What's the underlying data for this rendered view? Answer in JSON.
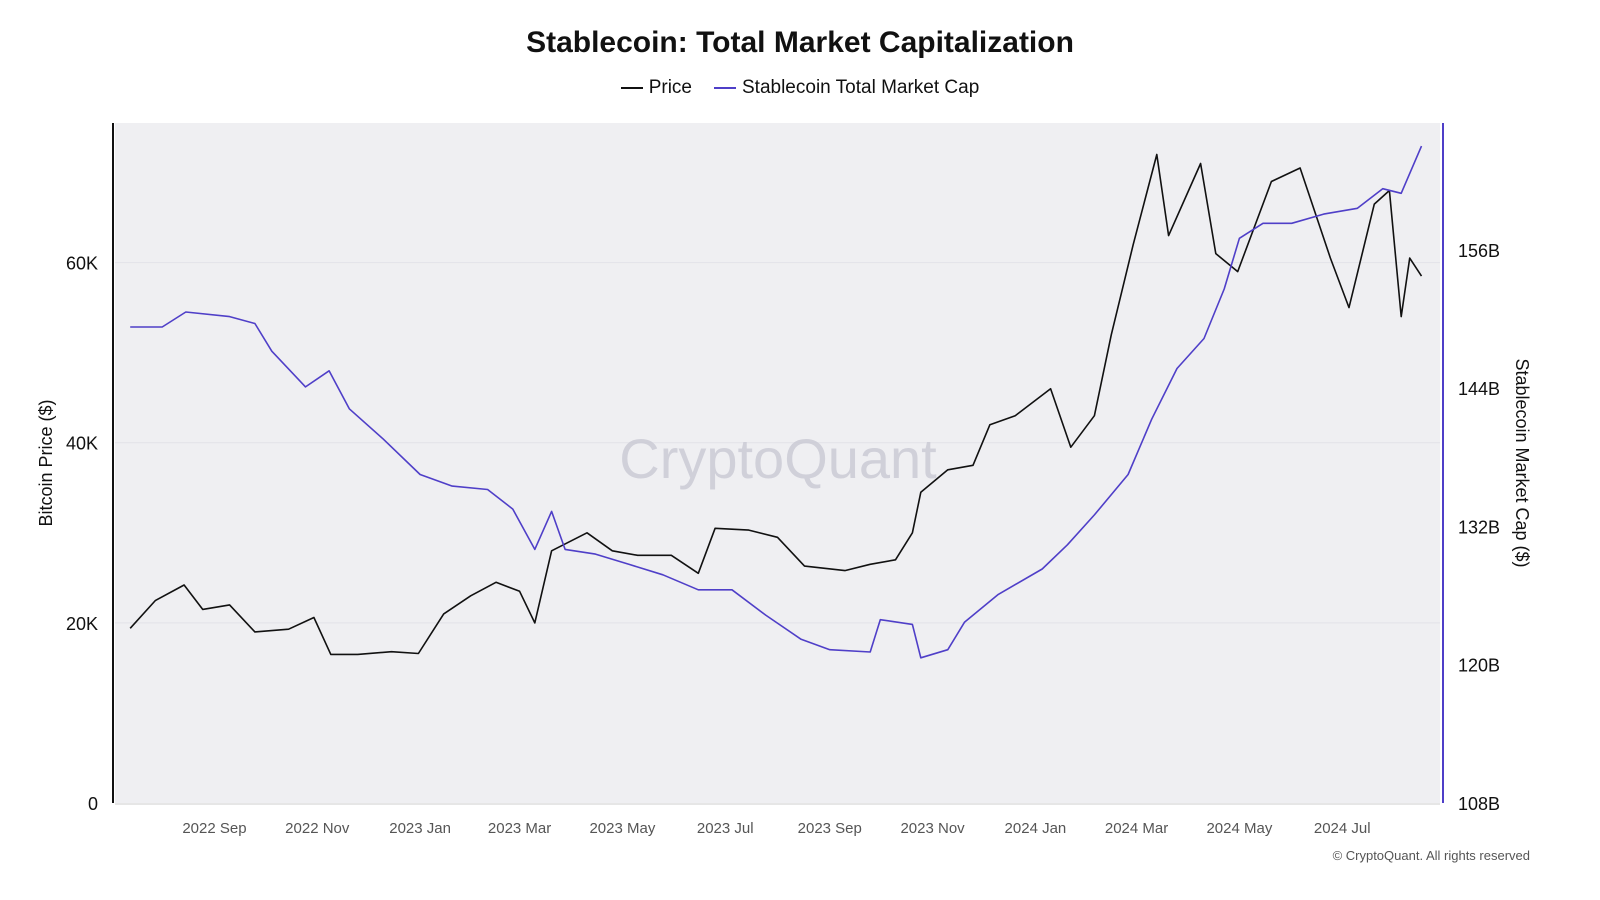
{
  "chart_data": {
    "type": "line",
    "title": "Stablecoin: Total Market Capitalization",
    "legend_position": "top",
    "grid": true,
    "x_range": [
      "2022-07-04",
      "2024-08-28"
    ],
    "x_ticks": [
      {
        "date": "2022-09-01",
        "label": "2022 Sep"
      },
      {
        "date": "2022-11-01",
        "label": "2022 Nov"
      },
      {
        "date": "2023-01-01",
        "label": "2023 Jan"
      },
      {
        "date": "2023-03-01",
        "label": "2023 Mar"
      },
      {
        "date": "2023-05-01",
        "label": "2023 May"
      },
      {
        "date": "2023-07-01",
        "label": "2023 Jul"
      },
      {
        "date": "2023-09-01",
        "label": "2023 Sep"
      },
      {
        "date": "2023-11-01",
        "label": "2023 Nov"
      },
      {
        "date": "2024-01-01",
        "label": "2024 Jan"
      },
      {
        "date": "2024-03-01",
        "label": "2024 Mar"
      },
      {
        "date": "2024-05-01",
        "label": "2024 May"
      },
      {
        "date": "2024-07-01",
        "label": "2024 Jul"
      }
    ],
    "y_left": {
      "label": "Bitcoin Price ($)",
      "range": [
        0,
        75500
      ],
      "ticks": [
        {
          "v": 0,
          "label": "0"
        },
        {
          "v": 20000,
          "label": "20K"
        },
        {
          "v": 40000,
          "label": "40K"
        },
        {
          "v": 60000,
          "label": "60K"
        }
      ]
    },
    "y_right": {
      "label": "Stablecoin Market Cap ($)",
      "range": [
        108,
        167
      ],
      "unit": "B",
      "ticks": [
        {
          "v": 108,
          "label": "108B"
        },
        {
          "v": 120,
          "label": "120B"
        },
        {
          "v": 132,
          "label": "132B"
        },
        {
          "v": 144,
          "label": "144B"
        },
        {
          "v": 156,
          "label": "156B"
        }
      ]
    },
    "series": [
      {
        "name": "Price",
        "axis": "left",
        "color": "#111111",
        "points": [
          [
            "2022-07-13",
            19400
          ],
          [
            "2022-07-28",
            22500
          ],
          [
            "2022-08-14",
            24200
          ],
          [
            "2022-08-25",
            21500
          ],
          [
            "2022-09-10",
            22000
          ],
          [
            "2022-09-25",
            19000
          ],
          [
            "2022-10-15",
            19300
          ],
          [
            "2022-10-30",
            20600
          ],
          [
            "2022-11-09",
            16500
          ],
          [
            "2022-11-25",
            16500
          ],
          [
            "2022-12-15",
            16800
          ],
          [
            "2022-12-31",
            16600
          ],
          [
            "2023-01-15",
            21000
          ],
          [
            "2023-01-31",
            23000
          ],
          [
            "2023-02-15",
            24500
          ],
          [
            "2023-03-01",
            23500
          ],
          [
            "2023-03-10",
            20000
          ],
          [
            "2023-03-20",
            28000
          ],
          [
            "2023-04-10",
            30000
          ],
          [
            "2023-04-25",
            28000
          ],
          [
            "2023-05-10",
            27500
          ],
          [
            "2023-05-30",
            27500
          ],
          [
            "2023-06-15",
            25500
          ],
          [
            "2023-06-25",
            30500
          ],
          [
            "2023-07-15",
            30300
          ],
          [
            "2023-08-01",
            29500
          ],
          [
            "2023-08-17",
            26300
          ],
          [
            "2023-09-10",
            25800
          ],
          [
            "2023-09-25",
            26500
          ],
          [
            "2023-10-10",
            27000
          ],
          [
            "2023-10-20",
            30000
          ],
          [
            "2023-10-25",
            34500
          ],
          [
            "2023-11-10",
            37000
          ],
          [
            "2023-11-25",
            37500
          ],
          [
            "2023-12-05",
            42000
          ],
          [
            "2023-12-20",
            43000
          ],
          [
            "2024-01-10",
            46000
          ],
          [
            "2024-01-22",
            39500
          ],
          [
            "2024-02-05",
            43000
          ],
          [
            "2024-02-15",
            52000
          ],
          [
            "2024-02-28",
            62000
          ],
          [
            "2024-03-13",
            72000
          ],
          [
            "2024-03-20",
            63000
          ],
          [
            "2024-04-08",
            71000
          ],
          [
            "2024-04-17",
            61000
          ],
          [
            "2024-04-30",
            59000
          ],
          [
            "2024-05-20",
            69000
          ],
          [
            "2024-06-06",
            70500
          ],
          [
            "2024-06-24",
            60500
          ],
          [
            "2024-07-05",
            55000
          ],
          [
            "2024-07-20",
            66500
          ],
          [
            "2024-07-29",
            68000
          ],
          [
            "2024-08-05",
            54000
          ],
          [
            "2024-08-10",
            60500
          ],
          [
            "2024-08-17",
            58500
          ]
        ]
      },
      {
        "name": "Stablecoin Total Market Cap",
        "axis": "right",
        "color": "#4f3fc8",
        "points": [
          [
            "2022-07-13",
            149.3
          ],
          [
            "2022-08-01",
            149.3
          ],
          [
            "2022-08-15",
            150.6
          ],
          [
            "2022-09-10",
            150.2
          ],
          [
            "2022-09-25",
            149.6
          ],
          [
            "2022-10-05",
            147.2
          ],
          [
            "2022-10-25",
            144.1
          ],
          [
            "2022-11-08",
            145.5
          ],
          [
            "2022-11-20",
            142.2
          ],
          [
            "2022-12-10",
            139.6
          ],
          [
            "2023-01-01",
            136.5
          ],
          [
            "2023-01-20",
            135.5
          ],
          [
            "2023-02-10",
            135.2
          ],
          [
            "2023-02-25",
            133.5
          ],
          [
            "2023-03-10",
            130.0
          ],
          [
            "2023-03-20",
            133.3
          ],
          [
            "2023-03-28",
            130.0
          ],
          [
            "2023-04-15",
            129.6
          ],
          [
            "2023-05-05",
            128.7
          ],
          [
            "2023-05-25",
            127.8
          ],
          [
            "2023-06-15",
            126.5
          ],
          [
            "2023-07-05",
            126.5
          ],
          [
            "2023-07-25",
            124.3
          ],
          [
            "2023-08-15",
            122.2
          ],
          [
            "2023-09-01",
            121.3
          ],
          [
            "2023-09-25",
            121.1
          ],
          [
            "2023-10-01",
            123.9
          ],
          [
            "2023-10-20",
            123.5
          ],
          [
            "2023-10-25",
            120.6
          ],
          [
            "2023-11-10",
            121.3
          ],
          [
            "2023-11-20",
            123.7
          ],
          [
            "2023-12-10",
            126.1
          ],
          [
            "2024-01-05",
            128.3
          ],
          [
            "2024-01-20",
            130.4
          ],
          [
            "2024-02-05",
            133.0
          ],
          [
            "2024-02-25",
            136.5
          ],
          [
            "2024-03-10",
            141.3
          ],
          [
            "2024-03-25",
            145.7
          ],
          [
            "2024-04-10",
            148.3
          ],
          [
            "2024-04-22",
            152.6
          ],
          [
            "2024-05-01",
            157.0
          ],
          [
            "2024-05-15",
            158.3
          ],
          [
            "2024-06-01",
            158.3
          ],
          [
            "2024-06-20",
            159.1
          ],
          [
            "2024-07-10",
            159.6
          ],
          [
            "2024-07-25",
            161.3
          ],
          [
            "2024-08-05",
            160.9
          ],
          [
            "2024-08-17",
            165.0
          ]
        ]
      }
    ]
  },
  "watermark": "CryptoQuant",
  "footer": "© CryptoQuant. All rights reserved"
}
